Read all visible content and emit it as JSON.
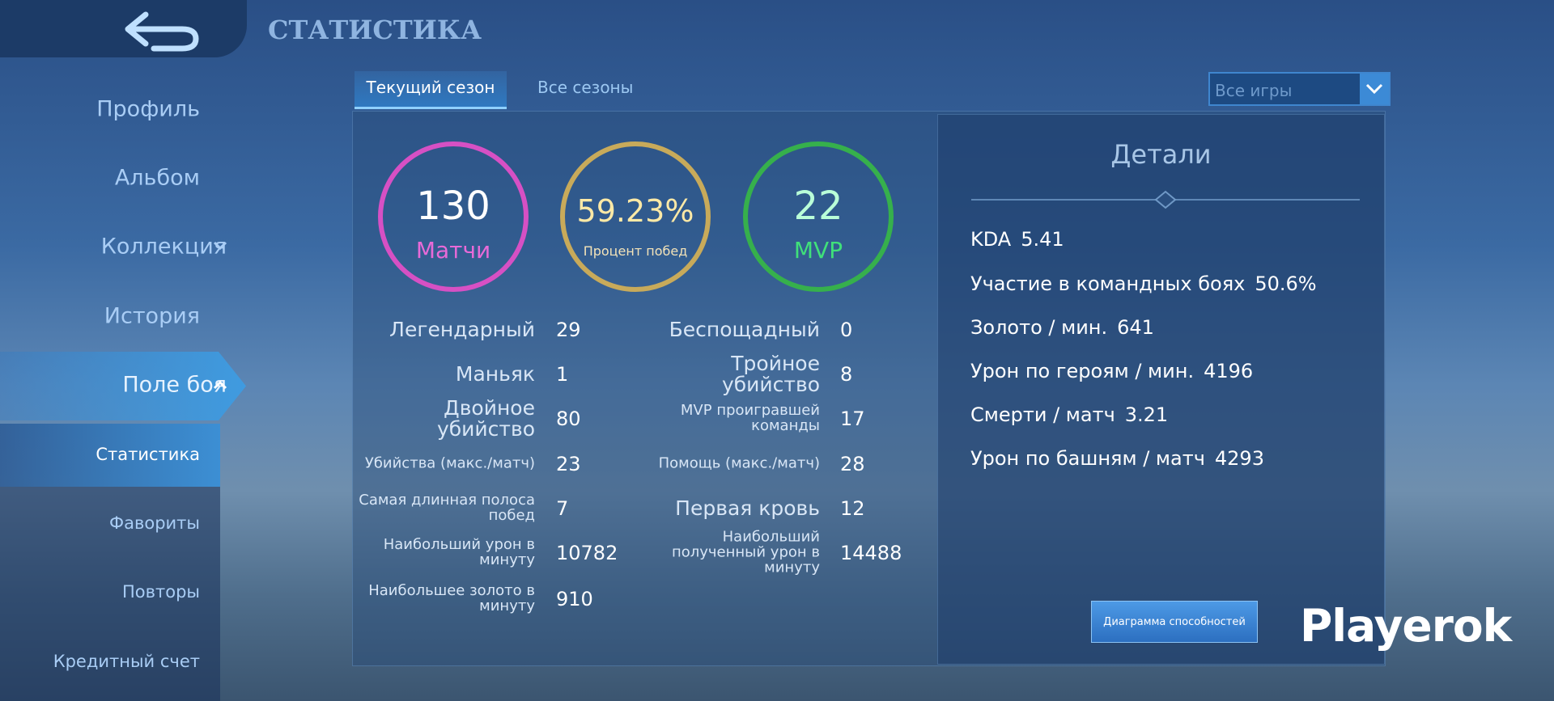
{
  "header": {
    "title": "СТАТИСТИКА"
  },
  "sidebar": {
    "items": [
      "Профиль",
      "Альбом",
      "Коллекция",
      "История",
      "Поле боя",
      "Статистика",
      "Фавориты",
      "Повторы",
      "Кредитный счет"
    ]
  },
  "tabs": [
    "Текущий сезон",
    "Все сезоны"
  ],
  "filter": "Все игры",
  "circles": [
    {
      "value": "130",
      "label": "Матчи"
    },
    {
      "value": "59.23%",
      "label": "Процент побед"
    },
    {
      "value": "22",
      "label": "MVP"
    }
  ],
  "stats": {
    "left": [
      {
        "label": "Легендарный",
        "value": "29"
      },
      {
        "label": "Маньяк",
        "value": "1"
      },
      {
        "label": "Двойное убийство",
        "value": "80"
      },
      {
        "label": "Убийства (макс./матч)",
        "value": "23"
      },
      {
        "label": "Самая длинная полоса побед",
        "value": "7"
      },
      {
        "label": "Наибольший урон в минуту",
        "value": "10782"
      },
      {
        "label": "Наибольшее золото в минуту",
        "value": "910"
      }
    ],
    "right": [
      {
        "label": "Беспощадный",
        "value": "0"
      },
      {
        "label": "Тройное убийство",
        "value": "8"
      },
      {
        "label": "MVP проигравшей команды",
        "value": "17"
      },
      {
        "label": "Помощь (макс./матч)",
        "value": "28"
      },
      {
        "label": "Первая кровь",
        "value": "12"
      },
      {
        "label": "Наибольший полученный урон в минуту",
        "value": "14488"
      }
    ]
  },
  "details": {
    "title": "Детали",
    "items": [
      {
        "label": "KDA",
        "value": "5.41"
      },
      {
        "label": "Участие в командных боях",
        "value": "50.6%"
      },
      {
        "label": "Золото / мин.",
        "value": "641"
      },
      {
        "label": "Урон по героям / мин.",
        "value": "4196"
      },
      {
        "label": "Смерти / матч",
        "value": "3.21"
      },
      {
        "label": "Урон по башням / матч",
        "value": "4293"
      }
    ],
    "button": "Диаграмма способностей"
  },
  "watermark": "Playerok"
}
